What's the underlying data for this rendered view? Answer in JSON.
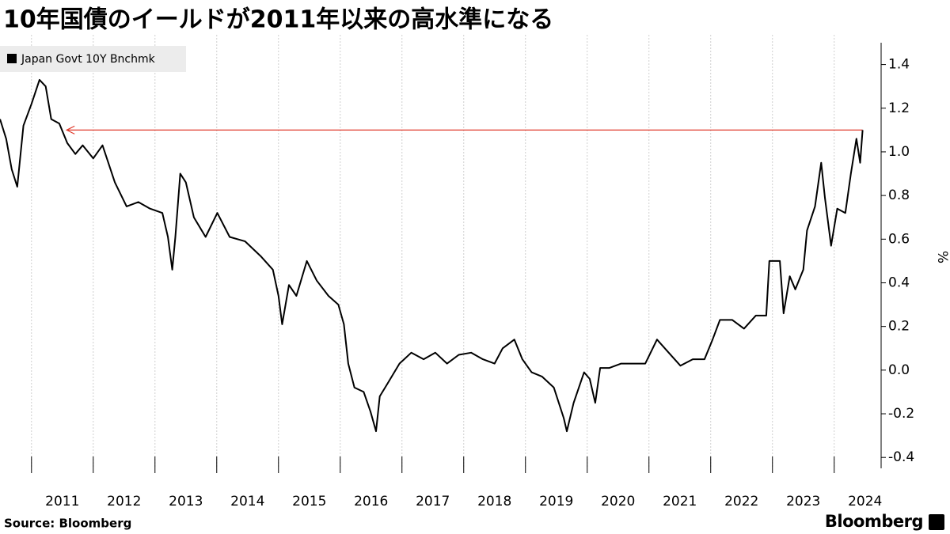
{
  "chart_data": {
    "type": "line",
    "title": "10年国債のイールドが2011年以来の高水準になる",
    "y_label": "%",
    "source": "Source:  Bloomberg",
    "brand": "Bloomberg",
    "legend_position": "top-left",
    "grid": true,
    "xlim": [
      2010.49,
      2024.76
    ],
    "xticks": [
      2011,
      2012,
      2013,
      2014,
      2015,
      2016,
      2017,
      2018,
      2019,
      2020,
      2021,
      2022,
      2023,
      2024
    ],
    "ylim": [
      -0.45,
      1.5
    ],
    "yticks": [
      1.4,
      1.2,
      {
        "value": 1,
        "label": "1.0"
      },
      0.8,
      0.6,
      0.4,
      0.2,
      {
        "value": 0,
        "label": "0.0"
      },
      -0.2,
      -0.4
    ],
    "reference_line": {
      "value": 1.1,
      "x": [
        2011.57,
        2024.46
      ],
      "color": "#e0392b"
    },
    "x": [
      2010.49,
      2010.59,
      2010.68,
      2010.77,
      2010.87,
      2011.0,
      2011.13,
      2011.23,
      2011.32,
      2011.45,
      2011.58,
      2011.71,
      2011.83,
      2012.0,
      2012.15,
      2012.35,
      2012.54,
      2012.73,
      2012.92,
      2013.12,
      2013.21,
      2013.28,
      2013.33,
      2013.41,
      2013.5,
      2013.63,
      2013.82,
      2014.01,
      2014.21,
      2014.46,
      2014.72,
      2014.91,
      2015.0,
      2015.06,
      2015.17,
      2015.29,
      2015.46,
      2015.62,
      2015.81,
      2015.97,
      2016.06,
      2016.13,
      2016.23,
      2016.38,
      2016.49,
      2016.58,
      2016.64,
      2016.77,
      2016.96,
      2017.15,
      2017.35,
      2017.54,
      2017.73,
      2017.92,
      2018.12,
      2018.31,
      2018.5,
      2018.63,
      2018.82,
      2018.95,
      2019.1,
      2019.27,
      2019.46,
      2019.62,
      2019.67,
      2019.78,
      2019.95,
      2020.04,
      2020.13,
      2020.21,
      2020.36,
      2020.55,
      2020.74,
      2020.94,
      2021.13,
      2021.32,
      2021.51,
      2021.71,
      2021.9,
      2022.03,
      2022.15,
      2022.35,
      2022.54,
      2022.73,
      2022.9,
      2022.95,
      2023.12,
      2023.18,
      2023.28,
      2023.37,
      2023.5,
      2023.56,
      2023.69,
      2023.79,
      2023.85,
      2023.95,
      2024.05,
      2024.18,
      2024.27,
      2024.36,
      2024.42,
      2024.46
    ],
    "series": [
      {
        "name": "Japan Govt 10Y Bnchmk",
        "color": "#000000",
        "values": [
          1.15,
          1.06,
          0.92,
          0.84,
          1.12,
          1.22,
          1.33,
          1.3,
          1.15,
          1.13,
          1.04,
          0.99,
          1.03,
          0.97,
          1.03,
          0.86,
          0.75,
          0.77,
          0.74,
          0.72,
          0.61,
          0.46,
          0.61,
          0.9,
          0.86,
          0.7,
          0.61,
          0.72,
          0.61,
          0.59,
          0.52,
          0.46,
          0.34,
          0.21,
          0.39,
          0.34,
          0.5,
          0.41,
          0.34,
          0.3,
          0.21,
          0.03,
          -0.08,
          -0.1,
          -0.19,
          -0.28,
          -0.12,
          -0.06,
          0.03,
          0.08,
          0.05,
          0.08,
          0.03,
          0.07,
          0.08,
          0.05,
          0.03,
          0.1,
          0.14,
          0.05,
          -0.01,
          -0.03,
          -0.08,
          -0.22,
          -0.28,
          -0.15,
          -0.01,
          -0.04,
          -0.15,
          0.01,
          0.01,
          0.03,
          0.03,
          0.03,
          0.14,
          0.08,
          0.02,
          0.05,
          0.05,
          0.14,
          0.23,
          0.23,
          0.19,
          0.25,
          0.25,
          0.5,
          0.5,
          0.26,
          0.43,
          0.37,
          0.46,
          0.64,
          0.75,
          0.95,
          0.79,
          0.57,
          0.74,
          0.72,
          0.9,
          1.06,
          0.95,
          1.1
        ]
      }
    ]
  }
}
